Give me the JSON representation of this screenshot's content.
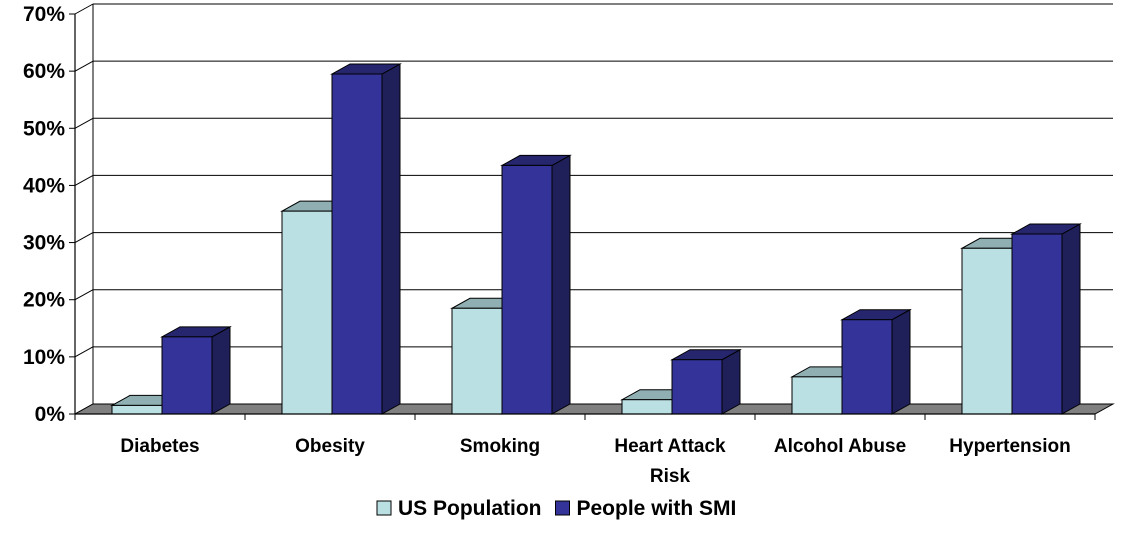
{
  "chart_data": {
    "type": "bar",
    "style": "3d-clustered-column",
    "categories": [
      [
        "Diabetes"
      ],
      [
        "Obesity"
      ],
      [
        "Smoking"
      ],
      [
        "Heart Attack",
        "Risk"
      ],
      [
        "Alcohol Abuse"
      ],
      [
        "Hypertension"
      ]
    ],
    "series": [
      {
        "name": "US Population",
        "values": [
          1.5,
          35.5,
          18.5,
          2.5,
          6.5,
          29
        ],
        "color": "#BBE0E3",
        "side_color": "#7F9FA3",
        "top_color": "#8FAFB2"
      },
      {
        "name": "People with SMI",
        "values": [
          13.5,
          59.5,
          43.5,
          9.5,
          16.5,
          31.5
        ],
        "color": "#333399",
        "side_color": "#1F1F5A",
        "top_color": "#26266E"
      }
    ],
    "yticks": [
      "0%",
      "10%",
      "20%",
      "30%",
      "40%",
      "50%",
      "60%",
      "70%"
    ],
    "ylim": [
      0,
      70
    ],
    "grid": true,
    "legend_position": "bottom",
    "floor_color": "#808080"
  }
}
